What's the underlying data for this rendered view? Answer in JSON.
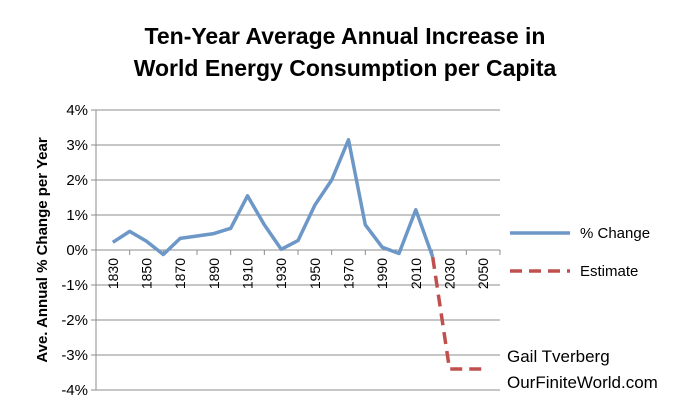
{
  "chart_data": {
    "type": "line",
    "title_lines": [
      "Ten-Year Average Annual Increase in",
      "World Energy Consumption per Capita"
    ],
    "ylabel": "Ave. Annual % Change per Year",
    "xlabel": "",
    "ylim": [
      -4,
      4
    ],
    "y_ticks": [
      "4%",
      "3%",
      "2%",
      "1%",
      "0%",
      "-1%",
      "-2%",
      "-3%",
      "-4%"
    ],
    "y_tick_values": [
      4,
      3,
      2,
      1,
      0,
      -1,
      -2,
      -3,
      -4
    ],
    "x_range": [
      1820,
      2060
    ],
    "x_ticks": [
      "1830",
      "1850",
      "1870",
      "1890",
      "1910",
      "1930",
      "1950",
      "1970",
      "1990",
      "2010",
      "2030",
      "2050"
    ],
    "x_tick_values": [
      1830,
      1850,
      1870,
      1890,
      1910,
      1930,
      1950,
      1970,
      1990,
      2010,
      2030,
      2050
    ],
    "grid": true,
    "legend_position": "right",
    "series": [
      {
        "name": "% Change",
        "color": "#6C97C7",
        "style": "solid",
        "x": [
          1830,
          1840,
          1850,
          1860,
          1870,
          1880,
          1890,
          1900,
          1910,
          1920,
          1930,
          1940,
          1950,
          1960,
          1970,
          1980,
          1990,
          2000,
          2010,
          2020
        ],
        "y": [
          0.22,
          0.53,
          0.25,
          -0.13,
          0.33,
          0.4,
          0.47,
          0.62,
          1.55,
          0.72,
          0.02,
          0.27,
          1.28,
          2.0,
          3.15,
          0.72,
          0.08,
          -0.1,
          1.15,
          -0.2
        ]
      },
      {
        "name": "Estimate",
        "color": "#C0504D",
        "style": "dashed",
        "x": [
          2020,
          2025,
          2030,
          2035,
          2040,
          2045,
          2050
        ],
        "y": [
          -0.2,
          -1.8,
          -3.4,
          -3.4,
          -3.4,
          -3.4,
          -3.4
        ]
      }
    ],
    "annotations": [
      "Gail Tverberg",
      "OurFiniteWorld.com"
    ]
  }
}
